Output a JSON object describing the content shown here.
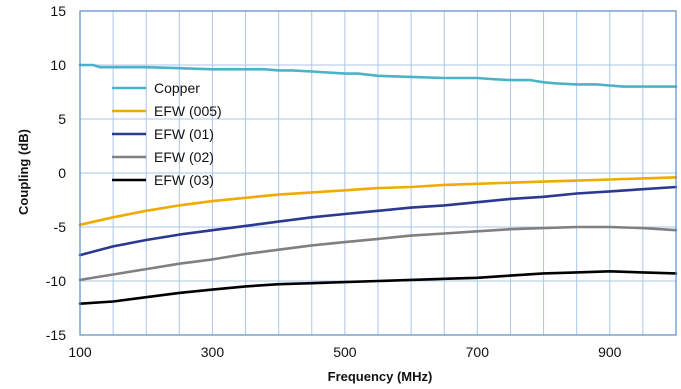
{
  "chart_data": {
    "type": "line",
    "title": "",
    "xlabel": "Frequency (MHz)",
    "ylabel": "Coupling (dB)",
    "xlim": [
      100,
      1000
    ],
    "ylim": [
      -15,
      15
    ],
    "x_ticks": [
      100,
      300,
      500,
      700,
      900
    ],
    "x_tick_labels": [
      "100",
      "300",
      "500",
      "700",
      "900"
    ],
    "y_ticks": [
      15,
      10,
      5,
      0,
      -5,
      -10,
      -15
    ],
    "y_tick_labels": [
      "15",
      "10",
      "5",
      "0",
      "-5",
      "-10",
      "-15"
    ],
    "grid": true,
    "legend_position": "left",
    "series": [
      {
        "name": "Copper",
        "color": "#4bb3c8",
        "x": [
          100,
          120,
          130,
          150,
          200,
          250,
          300,
          350,
          380,
          400,
          420,
          450,
          500,
          520,
          550,
          600,
          650,
          700,
          720,
          750,
          780,
          800,
          820,
          850,
          880,
          900,
          920,
          950,
          1000
        ],
        "values": [
          10.0,
          10.0,
          9.8,
          9.8,
          9.8,
          9.7,
          9.6,
          9.6,
          9.6,
          9.5,
          9.5,
          9.4,
          9.2,
          9.2,
          9.0,
          8.9,
          8.8,
          8.8,
          8.7,
          8.6,
          8.6,
          8.4,
          8.3,
          8.2,
          8.2,
          8.1,
          8.0,
          8.0,
          8.0
        ]
      },
      {
        "name": "EFW (005)",
        "color": "#f0ab00",
        "x": [
          100,
          150,
          200,
          250,
          300,
          350,
          400,
          450,
          500,
          550,
          600,
          650,
          700,
          750,
          800,
          850,
          900,
          950,
          1000
        ],
        "values": [
          -4.8,
          -4.1,
          -3.5,
          -3.0,
          -2.6,
          -2.3,
          -2.0,
          -1.8,
          -1.6,
          -1.4,
          -1.3,
          -1.1,
          -1.0,
          -0.9,
          -0.8,
          -0.7,
          -0.6,
          -0.5,
          -0.4
        ]
      },
      {
        "name": "EFW (01)",
        "color": "#2b3990",
        "x": [
          100,
          150,
          200,
          250,
          300,
          350,
          400,
          450,
          500,
          550,
          600,
          650,
          700,
          750,
          800,
          850,
          900,
          950,
          1000
        ],
        "values": [
          -7.6,
          -6.8,
          -6.2,
          -5.7,
          -5.3,
          -4.9,
          -4.5,
          -4.1,
          -3.8,
          -3.5,
          -3.2,
          -3.0,
          -2.7,
          -2.4,
          -2.2,
          -1.9,
          -1.7,
          -1.5,
          -1.3
        ]
      },
      {
        "name": "EFW (02)",
        "color": "#808080",
        "x": [
          100,
          150,
          200,
          250,
          300,
          350,
          400,
          450,
          500,
          550,
          600,
          650,
          700,
          750,
          800,
          850,
          900,
          950,
          1000
        ],
        "values": [
          -9.9,
          -9.4,
          -8.9,
          -8.4,
          -8.0,
          -7.5,
          -7.1,
          -6.7,
          -6.4,
          -6.1,
          -5.8,
          -5.6,
          -5.4,
          -5.2,
          -5.1,
          -5.0,
          -5.0,
          -5.1,
          -5.3
        ]
      },
      {
        "name": "EFW (03)",
        "color": "#000000",
        "x": [
          100,
          150,
          200,
          250,
          300,
          350,
          400,
          450,
          500,
          550,
          600,
          650,
          700,
          750,
          800,
          850,
          900,
          950,
          1000
        ],
        "values": [
          -12.1,
          -11.9,
          -11.5,
          -11.1,
          -10.8,
          -10.5,
          -10.3,
          -10.2,
          -10.1,
          -10.0,
          -9.9,
          -9.8,
          -9.7,
          -9.5,
          -9.3,
          -9.2,
          -9.1,
          -9.2,
          -9.3
        ]
      }
    ]
  }
}
